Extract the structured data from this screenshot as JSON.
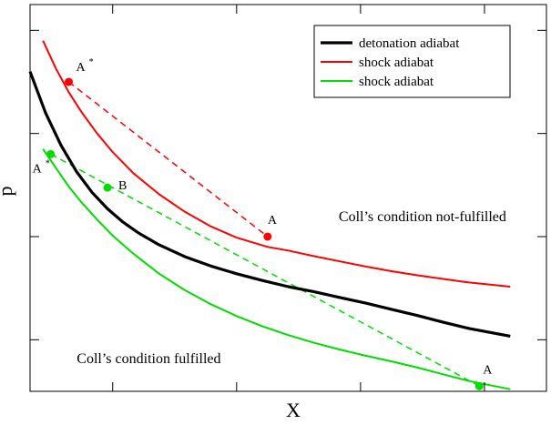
{
  "chart_data": {
    "type": "line",
    "xlabel": "X",
    "ylabel": "p",
    "xlim": [
      0.0,
      10.0
    ],
    "ylim": [
      0.0,
      7.5
    ],
    "x_ticks": [
      1.6,
      4.0,
      6.4,
      8.8
    ],
    "y_ticks": [
      1.0,
      3.0,
      5.0,
      7.0
    ],
    "grid": false,
    "legend_position": "top-right",
    "series": [
      {
        "name": "detonation adiabat",
        "color": "#000000",
        "style": "solid-thick",
        "x": [
          0.0,
          0.3,
          0.6,
          0.9,
          1.2,
          1.5,
          1.8,
          2.1,
          2.5,
          3.0,
          3.5,
          4.0,
          4.5,
          5.0,
          5.5,
          6.0,
          6.5,
          7.0,
          7.5,
          8.0,
          8.5,
          9.3
        ],
        "y": [
          6.2,
          5.4,
          4.77,
          4.26,
          3.86,
          3.54,
          3.28,
          3.07,
          2.84,
          2.61,
          2.43,
          2.28,
          2.15,
          2.03,
          1.93,
          1.82,
          1.71,
          1.59,
          1.47,
          1.34,
          1.22,
          1.07
        ]
      },
      {
        "name": "shock adiabat",
        "color": "#ff0000",
        "style": "solid",
        "x": [
          0.25,
          0.5,
          0.75,
          1.0,
          1.3,
          1.6,
          2.0,
          2.5,
          3.0,
          3.5,
          4.0,
          4.6,
          5.0,
          5.5,
          6.0,
          6.5,
          7.0,
          7.5,
          8.0,
          8.5,
          9.3
        ],
        "y": [
          6.8,
          6.26,
          5.8,
          5.41,
          5.0,
          4.64,
          4.23,
          3.82,
          3.48,
          3.2,
          2.98,
          2.8,
          2.73,
          2.62,
          2.52,
          2.42,
          2.33,
          2.25,
          2.18,
          2.11,
          2.03
        ]
      },
      {
        "name": "shock adiabat",
        "color": "#00dd00",
        "style": "solid",
        "x": [
          0.25,
          0.5,
          0.75,
          1.0,
          1.3,
          1.6,
          2.0,
          2.5,
          3.0,
          3.5,
          4.0,
          4.5,
          5.0,
          5.5,
          6.0,
          6.5,
          7.0,
          7.5,
          8.0,
          8.5,
          9.3
        ],
        "y": [
          4.7,
          4.33,
          3.97,
          3.66,
          3.33,
          3.02,
          2.67,
          2.28,
          1.96,
          1.69,
          1.46,
          1.26,
          1.09,
          0.94,
          0.81,
          0.69,
          0.58,
          0.46,
          0.33,
          0.2,
          0.04
        ]
      }
    ],
    "rayleigh_lines": [
      {
        "color": "#ff0000",
        "style": "dashed",
        "x": [
          0.75,
          4.6
        ],
        "y": [
          6.0,
          3.0
        ]
      },
      {
        "color": "#00dd00",
        "style": "dashed",
        "x": [
          0.4,
          8.7
        ],
        "y": [
          4.6,
          0.1
        ]
      }
    ],
    "points": [
      {
        "label": "A",
        "sup": "*",
        "x": 0.75,
        "y": 6.0,
        "color": "#ff0000"
      },
      {
        "label": "A",
        "sup": "",
        "x": 4.6,
        "y": 3.0,
        "color": "#ff0000"
      },
      {
        "label": "A",
        "sup": "*",
        "x": 0.4,
        "y": 4.6,
        "color": "#00dd00"
      },
      {
        "label": "B",
        "sup": "",
        "x": 1.5,
        "y": 3.95,
        "color": "#00dd00"
      },
      {
        "label": "A",
        "sup": "",
        "x": 8.7,
        "y": 0.1,
        "color": "#00dd00"
      }
    ],
    "annotations": [
      {
        "text": "Coll’s condition not-fulfilled",
        "x": 7.6,
        "y": 3.3
      },
      {
        "text": "Coll’s condition fulfilled",
        "x": 2.3,
        "y": 0.55
      }
    ]
  }
}
